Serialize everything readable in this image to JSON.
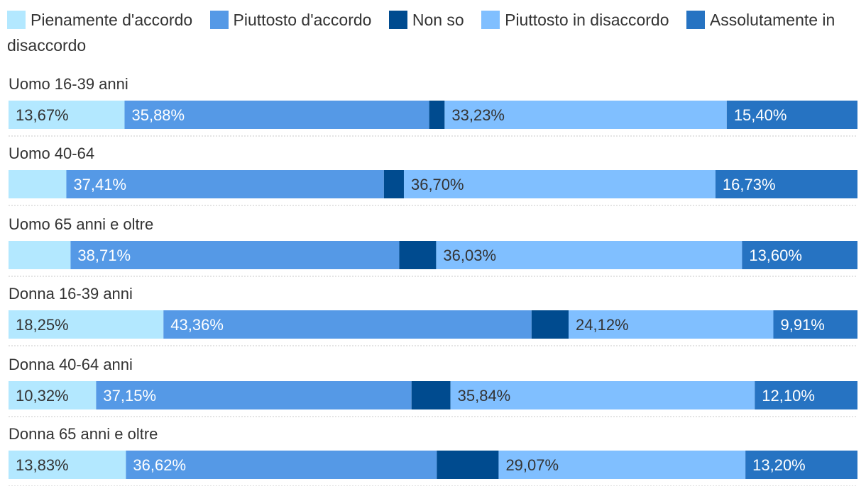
{
  "chart_data": {
    "type": "bar",
    "orientation": "horizontal",
    "stacked": true,
    "legend_position": "top",
    "series": [
      {
        "name": "Pienamente d'accordo",
        "color": "#b3e8ff"
      },
      {
        "name": "Piuttosto d'accordo",
        "color": "#5599e6"
      },
      {
        "name": "Non so",
        "color": "#004b8f"
      },
      {
        "name": "Piuttosto in disaccordo",
        "color": "#80bfff"
      },
      {
        "name": "Assolutamente in disaccordo",
        "color": "#2673c2"
      }
    ],
    "categories": [
      {
        "label": "Uomo 16-39 anni",
        "values": [
          13.67,
          35.88,
          1.82,
          33.23,
          15.4
        ],
        "labels": [
          "13,67%",
          "35,88%",
          "",
          "33,23%",
          "15,40%"
        ]
      },
      {
        "label": "Uomo 40-64",
        "values": [
          6.81,
          37.41,
          2.35,
          36.7,
          16.73
        ],
        "labels": [
          "",
          "37,41%",
          "",
          "36,70%",
          "16,73%"
        ]
      },
      {
        "label": "Uomo 65 anni e oltre",
        "values": [
          7.31,
          38.71,
          4.35,
          36.03,
          13.6
        ],
        "labels": [
          "",
          "38,71%",
          "",
          "36,03%",
          "13,60%"
        ]
      },
      {
        "label": "Donna 16-39 anni",
        "values": [
          18.25,
          43.36,
          4.36,
          24.12,
          9.91
        ],
        "labels": [
          "18,25%",
          "43,36%",
          "",
          "24,12%",
          "9,91%"
        ]
      },
      {
        "label": "Donna 40-64 anni",
        "values": [
          10.32,
          37.15,
          4.59,
          35.84,
          12.1
        ],
        "labels": [
          "10,32%",
          "37,15%",
          "",
          "35,84%",
          "12,10%"
        ]
      },
      {
        "label": "Donna 65 anni e oltre",
        "values": [
          13.83,
          36.62,
          7.28,
          29.07,
          13.2
        ],
        "labels": [
          "13,83%",
          "36,62%",
          "",
          "29,07%",
          "13,20%"
        ]
      }
    ],
    "xlim": [
      0,
      100
    ]
  }
}
